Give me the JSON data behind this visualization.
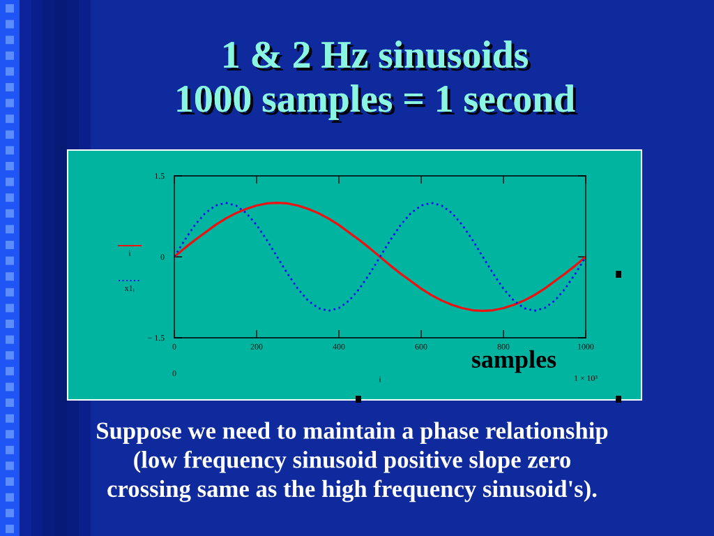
{
  "chart_data": {
    "type": "line",
    "title": "1 & 2 Hz sinusoids\n1000 samples = 1 second",
    "xlabel": "i",
    "x": [
      0,
      25,
      50,
      75,
      100,
      125,
      150,
      175,
      200,
      225,
      250,
      275,
      300,
      325,
      350,
      375,
      400,
      425,
      450,
      475,
      500,
      525,
      550,
      575,
      600,
      625,
      650,
      675,
      700,
      725,
      750,
      775,
      800,
      825,
      850,
      875,
      900,
      925,
      950,
      975,
      1000
    ],
    "series": [
      {
        "name": "i",
        "color": "#ee1111",
        "line_style": "solid",
        "values": [
          0,
          0.16,
          0.31,
          0.45,
          0.59,
          0.71,
          0.81,
          0.89,
          0.95,
          0.99,
          1.0,
          0.99,
          0.95,
          0.89,
          0.81,
          0.71,
          0.59,
          0.45,
          0.31,
          0.16,
          0,
          -0.16,
          -0.31,
          -0.45,
          -0.59,
          -0.71,
          -0.81,
          -0.89,
          -0.95,
          -0.99,
          -1.0,
          -0.99,
          -0.95,
          -0.89,
          -0.81,
          -0.71,
          -0.59,
          -0.45,
          -0.31,
          -0.16,
          0
        ]
      },
      {
        "name": "x1$_{i}$",
        "color": "#1010ee",
        "line_style": "dotted",
        "values": [
          0,
          0.31,
          0.59,
          0.81,
          0.95,
          1.0,
          0.95,
          0.81,
          0.59,
          0.31,
          0,
          -0.31,
          -0.59,
          -0.81,
          -0.95,
          -1.0,
          -0.95,
          -0.81,
          -0.59,
          -0.31,
          0,
          0.31,
          0.59,
          0.81,
          0.95,
          1.0,
          0.95,
          0.81,
          0.59,
          0.31,
          0,
          -0.31,
          -0.59,
          -0.81,
          -0.95,
          -1.0,
          -0.95,
          -0.81,
          -0.59,
          -0.31,
          0
        ]
      }
    ],
    "xlim": [
      0,
      1000
    ],
    "xticks": [
      0,
      200,
      400,
      600,
      800,
      1000
    ],
    "ylim": [
      -1.5,
      1.5
    ],
    "yticks": [
      1.5,
      0,
      {
        "value": -1.5,
        "label": "− 1.5"
      }
    ],
    "legend": "left",
    "annotations": [
      "samples",
      "0",
      "1 × 10³",
      "Suppose we need to maintain a phase relationship\n(low frequency sinusoid positive slope zero\ncrossing same as the high frequency sinusoid's)."
    ]
  }
}
